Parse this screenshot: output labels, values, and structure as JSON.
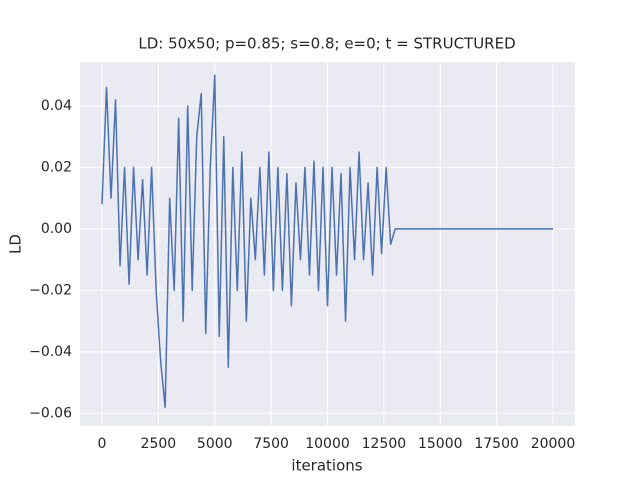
{
  "chart_data": {
    "type": "line",
    "title": "LD: 50x50; p=0.85; s=0.8; e=0; t = STRUCTURED",
    "x_label": "iterations",
    "y_label": "LD",
    "x": [
      0,
      200,
      400,
      600,
      800,
      1000,
      1200,
      1400,
      1600,
      1800,
      2000,
      2200,
      2400,
      2600,
      2800,
      3000,
      3200,
      3400,
      3600,
      3800,
      4000,
      4200,
      4400,
      4600,
      4800,
      5000,
      5200,
      5400,
      5600,
      5800,
      6000,
      6200,
      6400,
      6600,
      6800,
      7000,
      7200,
      7400,
      7600,
      7800,
      8000,
      8200,
      8400,
      8600,
      8800,
      9000,
      9200,
      9400,
      9600,
      9800,
      10000,
      10200,
      10400,
      10600,
      10800,
      11000,
      11200,
      11400,
      11600,
      11800,
      12000,
      12200,
      12400,
      12600,
      12800,
      13000,
      20000
    ],
    "series": [
      {
        "name": "LD",
        "color": "#4c72b0",
        "values": [
          0.008,
          0.046,
          0.01,
          0.042,
          -0.012,
          0.02,
          -0.018,
          0.02,
          -0.01,
          0.016,
          -0.015,
          0.02,
          -0.02,
          -0.043,
          -0.058,
          0.01,
          -0.02,
          0.036,
          -0.03,
          0.04,
          -0.02,
          0.03,
          0.044,
          -0.034,
          0.02,
          0.05,
          -0.035,
          0.03,
          -0.045,
          0.02,
          -0.02,
          0.025,
          -0.03,
          0.01,
          -0.01,
          0.02,
          -0.015,
          0.025,
          -0.02,
          0.02,
          -0.02,
          0.018,
          -0.025,
          0.015,
          -0.01,
          0.02,
          -0.015,
          0.022,
          -0.02,
          0.02,
          -0.025,
          0.02,
          -0.015,
          0.018,
          -0.03,
          0.02,
          -0.01,
          0.025,
          -0.01,
          0.015,
          -0.015,
          0.02,
          -0.008,
          0.02,
          -0.005,
          0.0,
          0.0
        ]
      }
    ],
    "xlim": [
      -976,
      20976
    ],
    "ylim": [
      -0.0641,
      0.0543
    ],
    "xticks": [
      0,
      2500,
      5000,
      7500,
      10000,
      12500,
      15000,
      17500,
      20000
    ],
    "yticks": [
      {
        "value": -0.06,
        "label": "−0.06"
      },
      {
        "value": -0.04,
        "label": "−0.04"
      },
      {
        "value": -0.02,
        "label": "−0.02"
      },
      {
        "value": 0,
        "label": "0.00"
      },
      {
        "value": 0.02,
        "label": "0.02"
      },
      {
        "value": 0.04,
        "label": "0.04"
      }
    ],
    "grid": true
  }
}
